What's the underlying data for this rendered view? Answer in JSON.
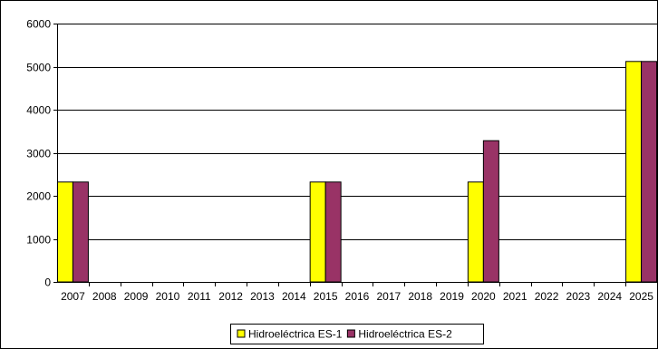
{
  "chart_data": {
    "type": "bar",
    "title": "",
    "xlabel": "",
    "ylabel": "",
    "ylim": [
      0,
      6000
    ],
    "yticks": [
      0,
      1000,
      2000,
      3000,
      4000,
      5000,
      6000
    ],
    "grid": true,
    "legend_position": "bottom",
    "categories": [
      "2007",
      "2008",
      "2009",
      "2010",
      "2011",
      "2012",
      "2013",
      "2014",
      "2015",
      "2016",
      "2017",
      "2018",
      "2019",
      "2020",
      "2021",
      "2022",
      "2023",
      "2024",
      "2025"
    ],
    "series": [
      {
        "name": "Hidroeléctrica ES-1",
        "color": "#ffff00",
        "values": [
          2320,
          0,
          0,
          0,
          0,
          0,
          0,
          0,
          2320,
          0,
          0,
          0,
          0,
          2320,
          0,
          0,
          0,
          0,
          5120
        ]
      },
      {
        "name": "Hidroeléctrica ES-2",
        "color": "#993366",
        "values": [
          2320,
          0,
          0,
          0,
          0,
          0,
          0,
          0,
          2320,
          0,
          0,
          0,
          0,
          3280,
          0,
          0,
          0,
          0,
          5120
        ]
      }
    ]
  }
}
